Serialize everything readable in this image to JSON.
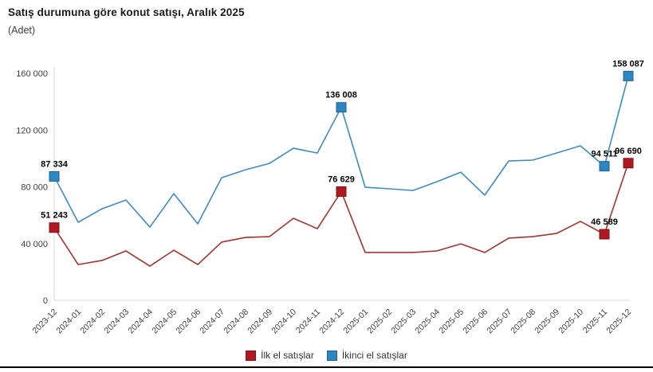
{
  "header": {
    "title": "Satış durumuna göre konut satışı, Aralık 2025",
    "subtitle": "(Adet)"
  },
  "chart_data": {
    "type": "line",
    "title": "Satış durumuna göre konut satışı, Aralık 2025",
    "unit_label": "(Adet)",
    "categories": [
      "2023-12",
      "2024-01",
      "2024-02",
      "2024-03",
      "2024-04",
      "2024-05",
      "2024-06",
      "2024-07",
      "2024-08",
      "2024-09",
      "2024-10",
      "2024-11",
      "2024-12",
      "2025-01",
      "2025-02",
      "2025-03",
      "2025-04",
      "2025-05",
      "2025-06",
      "2025-07",
      "2025-08",
      "2025-09",
      "2025-10",
      "2025-11",
      "2025-12"
    ],
    "series": [
      {
        "name": "İlk el satışlar",
        "color": "#b01922",
        "line_color": "#a2332e",
        "marker_stroke": "#7e1118",
        "values": [
          51243,
          25200,
          28100,
          34800,
          24100,
          35300,
          25200,
          41000,
          44300,
          44900,
          57800,
          50500,
          76629,
          33700,
          33700,
          33700,
          34800,
          39800,
          33700,
          43800,
          44900,
          47100,
          55600,
          46589,
          96690
        ],
        "labeled_points": {
          "0": "51 243",
          "12": "76 629",
          "23": "46 589",
          "24": "96 690"
        }
      },
      {
        "name": "İkinci el satışlar",
        "color": "#2e86c1",
        "line_color": "#3e8bc4",
        "marker_stroke": "#1e6396",
        "values": [
          87334,
          55000,
          64500,
          70700,
          51600,
          75200,
          53900,
          86400,
          92000,
          96500,
          107200,
          103800,
          136008,
          79700,
          78600,
          77400,
          83600,
          90300,
          74100,
          98200,
          98800,
          103800,
          108900,
          94511,
          158087
        ],
        "labeled_points": {
          "0": "87 334",
          "12": "136 008",
          "23": "94 511",
          "24": "158 087"
        }
      }
    ],
    "ylim": [
      0,
      160000
    ],
    "yticks": [
      {
        "value": 0,
        "label": "0"
      },
      {
        "value": 40000,
        "label": "40 000"
      },
      {
        "value": 80000,
        "label": "80 000"
      },
      {
        "value": 120000,
        "label": "120 000"
      },
      {
        "value": 160000,
        "label": "160 000"
      }
    ],
    "grid": false,
    "legend_position": "bottom"
  },
  "legend": {
    "items": [
      {
        "label": "İlk el satışlar",
        "color": "#b01922"
      },
      {
        "label": "İkinci el satışlar",
        "color": "#2e86c1"
      }
    ]
  },
  "colors": {
    "axis": "#d9d9d9",
    "tick_text": "#3d3d3d",
    "data_label": "#000000",
    "divider": "#000000",
    "background": "#ffffff"
  }
}
